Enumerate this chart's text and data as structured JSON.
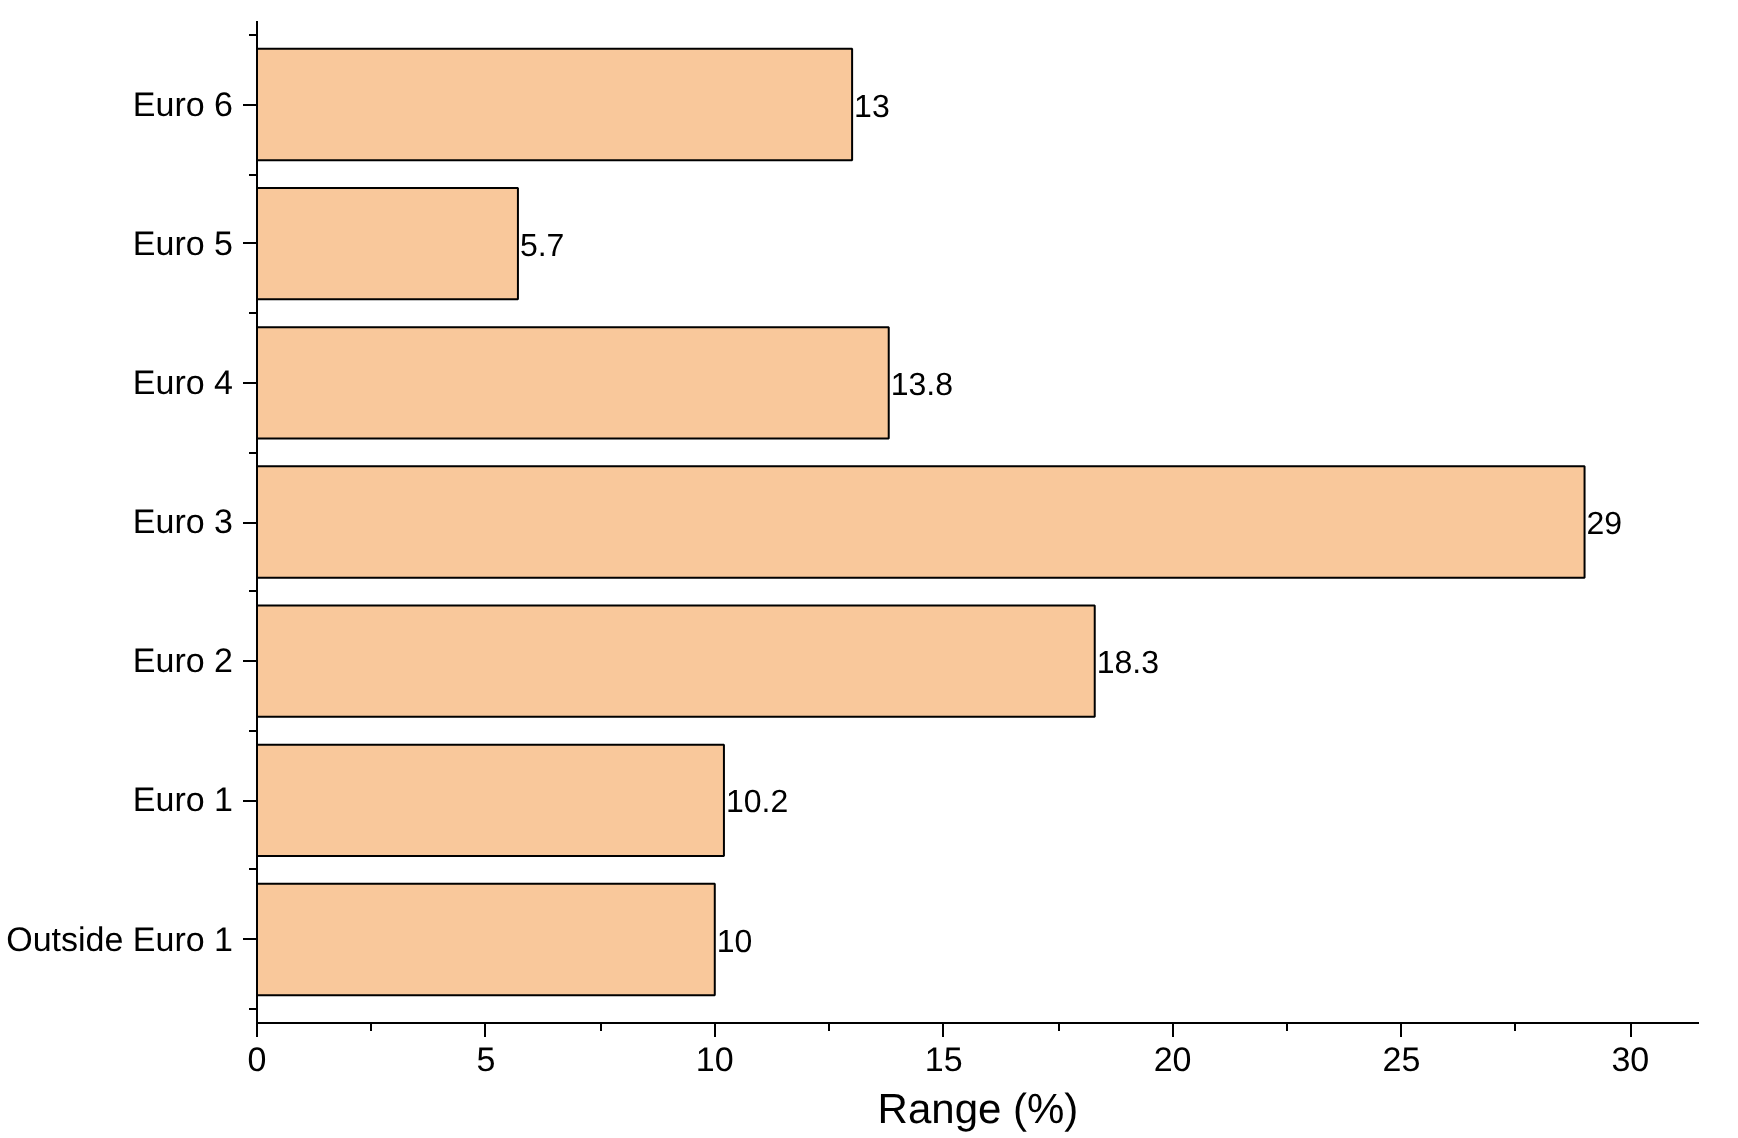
{
  "chart_data": {
    "type": "bar",
    "orientation": "horizontal",
    "xlabel": "Range (%)",
    "categories": [
      "Euro 6",
      "Euro 5",
      "Euro 4",
      "Euro 3",
      "Euro 2",
      "Euro 1",
      "Outside Euro 1"
    ],
    "values": [
      13,
      5.7,
      13.8,
      29,
      18.3,
      10.2,
      10
    ],
    "color": "#f9c89b",
    "xlim": [
      0,
      31.5
    ],
    "xticks": [
      0,
      5,
      10,
      15,
      20,
      25,
      30
    ],
    "data_labels": true
  }
}
